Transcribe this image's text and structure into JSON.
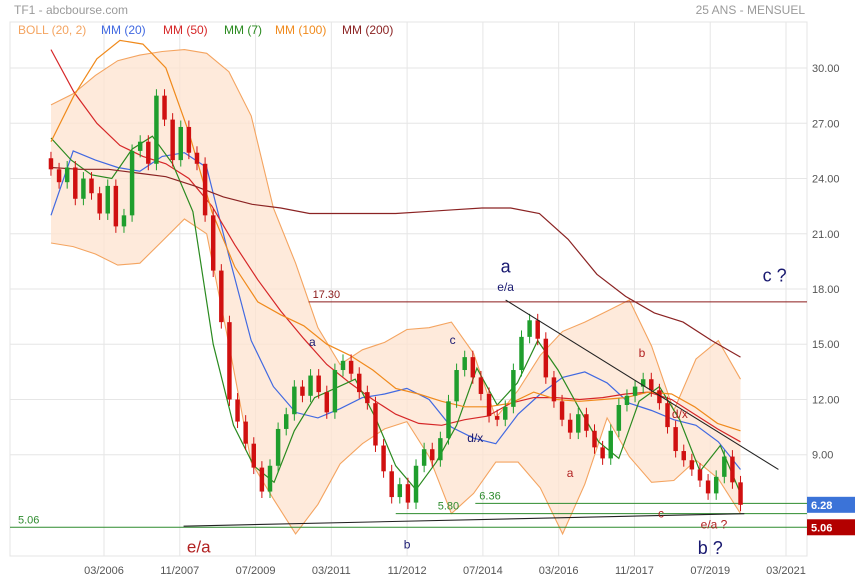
{
  "header": {
    "symbol": "TF1 - abcbourse.com",
    "period": "25 ANS - MENSUEL"
  },
  "legend": [
    {
      "label": "BOLL (20, 2)",
      "color": "#f4a460"
    },
    {
      "label": "MM (20)",
      "color": "#4169e1"
    },
    {
      "label": "MM (50)",
      "color": "#d62728"
    },
    {
      "label": "MM (7)",
      "color": "#2a8a1f"
    },
    {
      "label": "MM (100)",
      "color": "#f08a1c"
    },
    {
      "label": "MM (200)",
      "color": "#8b2323"
    }
  ],
  "chart_data": {
    "type": "candlestick",
    "x_ticks": [
      "03/2006",
      "11/2007",
      "07/2009",
      "03/2011",
      "11/2012",
      "07/2014",
      "03/2016",
      "11/2017",
      "07/2019",
      "03/2021"
    ],
    "y_ticks": [
      "30.00",
      "27.00",
      "24.00",
      "21.00",
      "18.00",
      "15.00",
      "12.00",
      "9.00"
    ],
    "ylim": [
      3.5,
      32.5
    ],
    "grid": true,
    "price_close": [
      24.5,
      23.8,
      24.6,
      22.9,
      24.0,
      23.2,
      22.1,
      23.6,
      21.4,
      22.0,
      25.5,
      26.0,
      24.8,
      28.5,
      27.2,
      25.0,
      26.8,
      25.4,
      24.8,
      22.0,
      19.0,
      16.2,
      12.0,
      10.8,
      9.6,
      8.3,
      7.0,
      8.4,
      10.4,
      11.2,
      12.7,
      12.2,
      13.3,
      12.4,
      11.3,
      13.6,
      14.1,
      13.4,
      12.4,
      11.8,
      9.5,
      8.1,
      6.7,
      7.4,
      6.4,
      8.4,
      9.3,
      8.7,
      9.9,
      11.9,
      13.6,
      14.3,
      13.2,
      12.3,
      11.1,
      10.9,
      11.6,
      13.6,
      15.4,
      16.3,
      15.3,
      13.2,
      11.9,
      10.9,
      10.2,
      11.2,
      10.3,
      9.4,
      8.8,
      10.3,
      11.7,
      12.2,
      12.7,
      13.1,
      12.5,
      11.8,
      10.5,
      9.2,
      8.7,
      8.2,
      7.6,
      6.9,
      7.8,
      8.9,
      7.5,
      6.28
    ],
    "series": [
      {
        "name": "BOLL (20, 2)",
        "values": [
          [
            20.5,
            28.0
          ],
          [
            20.3,
            28.6
          ],
          [
            19.9,
            29.6
          ],
          [
            19.3,
            30.4
          ],
          [
            19.4,
            30.7
          ],
          [
            20.6,
            30.9
          ],
          [
            21.8,
            31.0
          ],
          [
            21.0,
            30.8
          ],
          [
            15.0,
            29.8
          ],
          [
            8.6,
            27.4
          ],
          [
            6.6,
            22.4
          ],
          [
            4.7,
            19.4
          ],
          [
            6.3,
            15.9
          ],
          [
            8.5,
            13.9
          ],
          [
            9.6,
            14.7
          ],
          [
            10.4,
            15.1
          ],
          [
            10.8,
            15.8
          ],
          [
            8.9,
            15.9
          ],
          [
            5.8,
            16.2
          ],
          [
            6.9,
            14.5
          ],
          [
            8.6,
            11.0
          ],
          [
            8.6,
            12.5
          ],
          [
            7.2,
            14.4
          ],
          [
            4.7,
            15.7
          ],
          [
            7.4,
            16.2
          ],
          [
            11.0,
            16.8
          ],
          [
            8.9,
            17.4
          ],
          [
            7.5,
            14.9
          ],
          [
            7.6,
            11.4
          ],
          [
            8.7,
            14.2
          ],
          [
            7.7,
            15.2
          ],
          [
            5.8,
            13.1
          ]
        ]
      },
      {
        "name": "MM (20)",
        "values": [
          22.0,
          25.5,
          25.0,
          24.6,
          24.4,
          25.2,
          25.4,
          24.6,
          19.8,
          15.2,
          12.7,
          11.3,
          11.0,
          11.5,
          12.1,
          12.3,
          12.6,
          12.0,
          10.5,
          9.9,
          9.6,
          11.2,
          12.3,
          13.2,
          13.5,
          12.9,
          11.8,
          11.4,
          10.9,
          10.6,
          9.7,
          8.2
        ]
      },
      {
        "name": "MM (50)",
        "values": [
          31.0,
          28.7,
          27.0,
          25.8,
          25.2,
          24.8,
          24.0,
          22.5,
          20.4,
          18.5,
          16.8,
          15.3,
          13.9,
          12.9,
          12.0,
          11.2,
          10.7,
          10.6,
          10.9,
          11.1,
          11.8,
          12.1,
          12.1,
          12.0,
          12.1,
          12.3,
          12.4,
          12.0,
          11.2,
          10.4,
          9.7
        ]
      },
      {
        "name": "MM (7)",
        "values": [
          26.2,
          25.0,
          24.2,
          24.0,
          25.6,
          26.3,
          24.8,
          22.2,
          15.0,
          10.6,
          8.4,
          7.5,
          10.3,
          12.1,
          12.6,
          13.1,
          11.0,
          8.4,
          7.1,
          8.6,
          10.6,
          13.7,
          11.7,
          12.9,
          15.2,
          13.6,
          11.6,
          9.7,
          8.8,
          11.9,
          12.7,
          10.9,
          8.1,
          9.5,
          6.9
        ]
      },
      {
        "name": "MM (100)",
        "values": [
          26.0,
          28.5,
          30.5,
          31.5,
          31.3,
          30.0,
          26.5,
          22.2,
          19.2,
          17.3,
          16.6,
          16.0,
          15.0,
          14.4,
          13.6,
          12.6,
          12.3,
          11.9,
          11.6,
          11.6,
          11.8,
          12.4,
          12.0,
          11.9,
          12.0,
          12.1,
          12.4,
          12.3,
          11.6,
          10.7,
          10.3
        ]
      },
      {
        "name": "MM (200)",
        "values": [
          24.6,
          24.5,
          24.5,
          24.3,
          24.1,
          23.6,
          23.0,
          22.6,
          22.4,
          22.1,
          22.1,
          22.1,
          22.1,
          22.2,
          22.3,
          22.4,
          22.4,
          22.1,
          20.7,
          18.8,
          17.6,
          16.7,
          16.2,
          15.2,
          14.3
        ]
      }
    ],
    "annotations": [
      {
        "text": "e/a",
        "x_date": "04/2008",
        "y": 3.7,
        "color": "#b22222",
        "size": 17
      },
      {
        "text": "a",
        "x_date": "10/2010",
        "y": 14.9,
        "color": "#191970",
        "size": 12
      },
      {
        "text": "b",
        "x_date": "11/2012",
        "y": 3.9,
        "color": "#191970",
        "size": 12
      },
      {
        "text": "c",
        "x_date": "11/2013",
        "y": 15.0,
        "color": "#191970",
        "size": 12
      },
      {
        "text": "a",
        "x_date": "01/2015",
        "y": 18.9,
        "color": "#191970",
        "size": 18
      },
      {
        "text": "e/a",
        "x_date": "01/2015",
        "y": 17.9,
        "color": "#191970",
        "size": 12
      },
      {
        "text": "d/x",
        "x_date": "05/2014",
        "y": 9.7,
        "color": "#191970",
        "size": 12
      },
      {
        "text": "a",
        "x_date": "06/2016",
        "y": 7.8,
        "color": "#b22222",
        "size": 12
      },
      {
        "text": "b",
        "x_date": "01/2018",
        "y": 14.3,
        "color": "#b22222",
        "size": 12
      },
      {
        "text": "c",
        "x_date": "06/2018",
        "y": 5.6,
        "color": "#b22222",
        "size": 12
      },
      {
        "text": "d/x",
        "x_date": "11/2018",
        "y": 11.0,
        "color": "#b22222",
        "size": 12
      },
      {
        "text": "e/a ?",
        "x_date": "08/2019",
        "y": 5.0,
        "color": "#b22222",
        "size": 12
      },
      {
        "text": "b ?",
        "x_date": "07/2019",
        "y": 3.6,
        "color": "#191970",
        "size": 18
      },
      {
        "text": "c ?",
        "x_date": "12/2020",
        "y": 18.4,
        "color": "#191970",
        "size": 18
      }
    ],
    "horizontal_lines": [
      {
        "label": "17.30",
        "value": 17.3,
        "color": "#8b1a1a"
      },
      {
        "label": "6.36",
        "value": 6.36,
        "color": "#2e8b2e"
      },
      {
        "label": "5.80",
        "value": 5.8,
        "color": "#2e8b2e"
      },
      {
        "label": "5.06",
        "value": 5.06,
        "color": "#2e8b2e"
      }
    ],
    "trend_lines": [
      {
        "name": "downtrend",
        "from_date": "01/2015",
        "from_value": 17.4,
        "to_date": "01/2021",
        "to_value": 8.2,
        "color": "#222222"
      },
      {
        "name": "support",
        "from_date": "12/2007",
        "from_value": 5.12,
        "to_date": "04/2020",
        "to_value": 5.8,
        "color": "#222222"
      }
    ],
    "price_badges": [
      {
        "value": "6.28",
        "color": "#3b73d8"
      },
      {
        "value": "5.06",
        "color": "#b30000"
      }
    ]
  }
}
